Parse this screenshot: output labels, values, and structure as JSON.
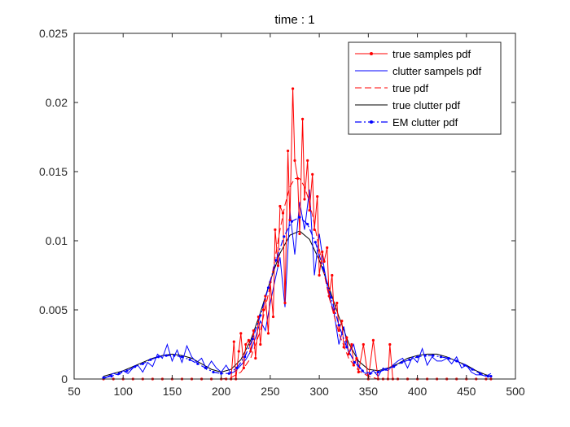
{
  "chart_data": {
    "type": "line",
    "title": "time : 1",
    "xlabel": "",
    "ylabel": "",
    "xlim": [
      50,
      500
    ],
    "ylim": [
      0,
      0.025
    ],
    "xticks": [
      50,
      100,
      150,
      200,
      250,
      300,
      350,
      400,
      450,
      500
    ],
    "xtick_labels": [
      "50",
      "100",
      "150",
      "200",
      "250",
      "300",
      "350",
      "400",
      "450",
      "500"
    ],
    "yticks": [
      0,
      0.005,
      0.01,
      0.015,
      0.02,
      0.025
    ],
    "ytick_labels": [
      "0",
      "0.005",
      "0.01",
      "0.015",
      "0.02",
      "0.025"
    ],
    "grid": false,
    "legend_position": "top-right",
    "series": [
      {
        "name": "true samples pdf",
        "color": "#ff0000",
        "style": "solid-dots",
        "x": [
          80,
          90,
          100,
          110,
          120,
          130,
          140,
          150,
          160,
          170,
          180,
          190,
          200,
          205,
          210,
          213,
          215,
          218,
          220,
          223,
          225,
          228,
          230,
          233,
          235,
          238,
          240,
          243,
          245,
          248,
          250,
          253,
          255,
          258,
          260,
          263,
          265,
          268,
          270,
          273,
          275,
          278,
          280,
          283,
          285,
          288,
          290,
          293,
          295,
          298,
          300,
          303,
          305,
          308,
          310,
          313,
          315,
          318,
          320,
          323,
          325,
          328,
          330,
          333,
          335,
          338,
          340,
          345,
          350,
          355,
          360,
          365,
          370,
          372,
          375,
          380,
          390,
          400,
          410,
          420,
          430,
          440,
          450,
          460,
          470,
          475
        ],
        "y": [
          0,
          0,
          0,
          0,
          0,
          0,
          0,
          0,
          0,
          0,
          0,
          0,
          0,
          0,
          0,
          0.0027,
          0,
          0.002,
          0.0033,
          0.0008,
          0.0025,
          0.0028,
          0.002,
          0.0035,
          0.0015,
          0.0045,
          0.0025,
          0.005,
          0.006,
          0.0033,
          0.007,
          0.0045,
          0.0108,
          0.0082,
          0.0125,
          0.012,
          0.0055,
          0.0165,
          0.0115,
          0.021,
          0.0158,
          0.0145,
          0.0105,
          0.0188,
          0.013,
          0.0158,
          0.0122,
          0.0148,
          0.0108,
          0.0132,
          0.0075,
          0.0092,
          0.0085,
          0.0095,
          0.006,
          0.0075,
          0.0048,
          0.0055,
          0.0035,
          0.0042,
          0.0023,
          0.003,
          0.0018,
          0.0025,
          0.001,
          0.0015,
          0.0005,
          0.0025,
          0,
          0.0028,
          0,
          0,
          0,
          0.0025,
          0,
          0,
          0,
          0,
          0,
          0,
          0,
          0,
          0,
          0,
          0,
          0
        ]
      },
      {
        "name": "clutter sampels pdf",
        "color": "#0000ff",
        "style": "solid",
        "x": [
          80,
          85,
          90,
          95,
          100,
          105,
          110,
          115,
          120,
          125,
          130,
          135,
          140,
          145,
          150,
          155,
          160,
          165,
          170,
          175,
          180,
          185,
          190,
          195,
          200,
          205,
          210,
          215,
          220,
          225,
          230,
          235,
          240,
          245,
          250,
          255,
          260,
          265,
          270,
          275,
          280,
          285,
          290,
          295,
          300,
          305,
          310,
          315,
          320,
          325,
          330,
          335,
          340,
          345,
          350,
          355,
          360,
          365,
          370,
          375,
          380,
          385,
          390,
          395,
          400,
          405,
          410,
          415,
          420,
          425,
          430,
          435,
          440,
          445,
          450,
          455,
          460,
          465,
          470,
          475
        ],
        "y": [
          0,
          0.0002,
          0.0004,
          0.0003,
          0.0006,
          0.0004,
          0.0008,
          0.001,
          0.0005,
          0.0012,
          0.0009,
          0.0018,
          0.0015,
          0.0025,
          0.0013,
          0.0021,
          0.0012,
          0.0024,
          0.0016,
          0.0012,
          0.0015,
          0.0007,
          0.0013,
          0.0008,
          0.0005,
          0.001,
          0.0004,
          0.0006,
          0.001,
          0.0014,
          0.002,
          0.003,
          0.0042,
          0.0035,
          0.0055,
          0.0072,
          0.0088,
          0.0052,
          0.0122,
          0.009,
          0.0128,
          0.0108,
          0.0137,
          0.0075,
          0.0105,
          0.008,
          0.006,
          0.0048,
          0.0025,
          0.0038,
          0.0018,
          0.0025,
          0.001,
          0.0005,
          0.0003,
          0.0006,
          0.0002,
          0.0008,
          0.0006,
          0.001,
          0.0013,
          0.0015,
          0.0008,
          0.0016,
          0.0012,
          0.0022,
          0.001,
          0.0016,
          0.0013,
          0.0013,
          0.0015,
          0.0011,
          0.0016,
          0.0008,
          0.001,
          0.0005,
          0.0003,
          0.0003,
          0.0002,
          0.0004
        ]
      },
      {
        "name": "true pdf",
        "color": "#ff0000",
        "style": "dashed",
        "x": [
          80,
          100,
          120,
          140,
          160,
          180,
          200,
          210,
          220,
          230,
          240,
          250,
          255,
          260,
          265,
          270,
          275,
          280,
          285,
          290,
          295,
          300,
          305,
          310,
          320,
          330,
          340,
          350,
          360,
          380,
          400,
          420,
          440,
          460,
          475
        ],
        "y": [
          0,
          0,
          0,
          0,
          0,
          0,
          0,
          0.0001,
          0.0005,
          0.0015,
          0.0035,
          0.0068,
          0.0088,
          0.0108,
          0.0126,
          0.0139,
          0.0145,
          0.0145,
          0.0139,
          0.0128,
          0.0112,
          0.0094,
          0.0076,
          0.0059,
          0.0033,
          0.0015,
          0.0006,
          0.0002,
          0,
          0,
          0,
          0,
          0,
          0,
          0
        ]
      },
      {
        "name": "true clutter pdf",
        "color": "#000000",
        "style": "solid",
        "x": [
          80,
          90,
          100,
          110,
          120,
          130,
          140,
          150,
          160,
          170,
          180,
          190,
          200,
          210,
          220,
          230,
          240,
          250,
          260,
          270,
          280,
          290,
          300,
          310,
          320,
          330,
          340,
          350,
          360,
          370,
          380,
          390,
          400,
          410,
          420,
          430,
          440,
          450,
          460,
          470,
          475
        ],
        "y": [
          0.0002,
          0.0004,
          0.0006,
          0.0009,
          0.0012,
          0.0015,
          0.0017,
          0.0018,
          0.0017,
          0.0015,
          0.0011,
          0.0007,
          0.0005,
          0.0007,
          0.0014,
          0.0028,
          0.0048,
          0.0071,
          0.0091,
          0.0104,
          0.0107,
          0.0101,
          0.0086,
          0.0066,
          0.0045,
          0.0026,
          0.0013,
          0.0007,
          0.0006,
          0.0008,
          0.0011,
          0.0015,
          0.0017,
          0.0018,
          0.0018,
          0.0016,
          0.0013,
          0.001,
          0.0006,
          0.0003,
          0.0002
        ]
      },
      {
        "name": "EM clutter pdf",
        "color": "#0000ff",
        "style": "dashdot-dots",
        "x": [
          80,
          88,
          96,
          104,
          112,
          120,
          128,
          136,
          144,
          152,
          160,
          168,
          176,
          184,
          192,
          200,
          208,
          216,
          224,
          232,
          240,
          248,
          256,
          264,
          272,
          280,
          288,
          296,
          304,
          312,
          320,
          328,
          336,
          344,
          352,
          360,
          368,
          376,
          384,
          392,
          400,
          408,
          416,
          424,
          432,
          440,
          448,
          456,
          464,
          472,
          475
        ],
        "y": [
          0.0001,
          0.0002,
          0.0004,
          0.0006,
          0.0009,
          0.0011,
          0.0014,
          0.0016,
          0.0017,
          0.0017,
          0.0016,
          0.0014,
          0.0011,
          0.0008,
          0.0005,
          0.0004,
          0.0004,
          0.0008,
          0.0016,
          0.0029,
          0.0046,
          0.0066,
          0.0086,
          0.0103,
          0.0114,
          0.0117,
          0.0112,
          0.0099,
          0.008,
          0.0059,
          0.0039,
          0.0023,
          0.0012,
          0.0006,
          0.0004,
          0.0005,
          0.0007,
          0.0009,
          0.0012,
          0.0014,
          0.0016,
          0.0017,
          0.0017,
          0.0016,
          0.0015,
          0.0013,
          0.001,
          0.0007,
          0.0004,
          0.0002,
          0.0002
        ]
      }
    ]
  }
}
